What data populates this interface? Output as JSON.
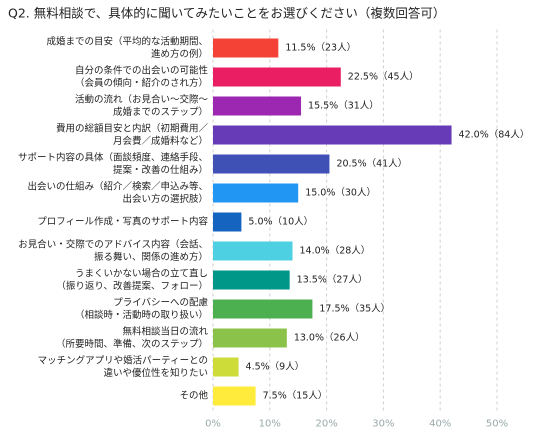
{
  "chart_data": {
    "type": "bar",
    "orientation": "horizontal",
    "title": "Q2. 無料相談で、具体的に聞いてみたいことをお選びください（複数回答可）",
    "categories": [
      [
        "成婚までの目安（平均的な活動期間、",
        "進め方の例）"
      ],
      [
        "自分の条件での出会いの可能性",
        "（会員の傾向・紹介のされ方）"
      ],
      [
        "活動の流れ（お見合い～交際～",
        "成婚までのステップ）"
      ],
      [
        "費用の総額目安と内訳（初期費用／",
        "月会費／成婚料など）"
      ],
      [
        "サポート内容の具体（面談頻度、連絡手段、",
        "提案・改善の仕組み）"
      ],
      [
        "出会いの仕組み（紹介／検索／申込み等、",
        "出会い方の選択肢）"
      ],
      [
        "プロフィール作成・写真のサポート内容"
      ],
      [
        "お見合い・交際でのアドバイス内容（会話、",
        "振る舞い、関係の進め方）"
      ],
      [
        "うまくいかない場合の立て直し",
        "（振り返り、改善提案、フォロー）"
      ],
      [
        "プライバシーへの配慮",
        "（相談時・活動時の取り扱い）"
      ],
      [
        "無料相談当日の流れ",
        "（所要時間、準備、次のステップ）"
      ],
      [
        "マッチングアプリや婚活パーティーとの",
        "違いや優位性を知りたい"
      ],
      [
        "その他"
      ]
    ],
    "values": [
      11.5,
      22.5,
      15.5,
      42.0,
      20.5,
      15.0,
      5.0,
      14.0,
      13.5,
      17.5,
      13.0,
      4.5,
      7.5
    ],
    "value_labels": [
      "11.5%（23人）",
      "22.5%（45人）",
      "15.5%（31人）",
      "42.0%（84人）",
      "20.5%（41人）",
      "15.0%（30人）",
      "5.0%（10人）",
      "14.0%（28人）",
      "13.5%（27人）",
      "17.5%（35人）",
      "13.0%（26人）",
      "4.5%（9人）",
      "7.5%（15人）"
    ],
    "colors": [
      "#f44336",
      "#e91e63",
      "#9c27b0",
      "#673ab7",
      "#3f51b5",
      "#2196f3",
      "#1565c0",
      "#4dd0e1",
      "#009688",
      "#4caf50",
      "#8bc34a",
      "#cddc39",
      "#ffeb3b"
    ],
    "xlim": [
      0,
      50
    ],
    "xticks": [
      {
        "value": 0,
        "label": "0%"
      },
      {
        "value": 10,
        "label": "10%"
      },
      {
        "value": 20,
        "label": "20%"
      },
      {
        "value": 30,
        "label": "30%"
      },
      {
        "value": 40,
        "label": "40%"
      },
      {
        "value": 50,
        "label": "50%"
      }
    ],
    "grid": true
  }
}
